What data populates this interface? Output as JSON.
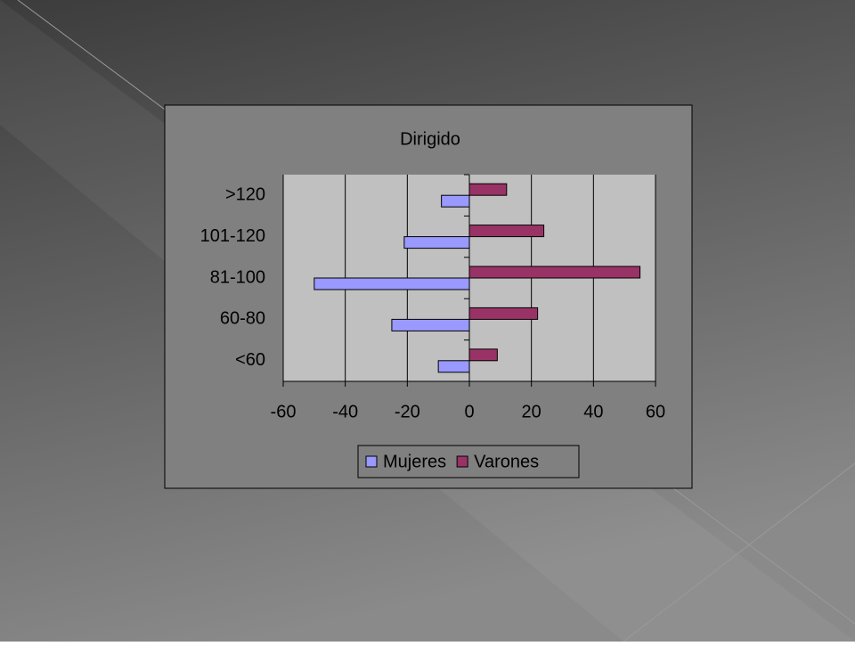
{
  "chart_data": {
    "type": "hbar",
    "title": "Dirigido",
    "categories": [
      ">120",
      "101-120",
      "81-100",
      "60-80",
      "<60"
    ],
    "series": [
      {
        "name": "Mujeres",
        "color": "#9999ff",
        "values": [
          -9,
          -21,
          -50,
          -25,
          -10
        ]
      },
      {
        "name": "Varones",
        "color": "#993366",
        "values": [
          12,
          24,
          55,
          22,
          9
        ]
      }
    ],
    "xlim": [
      -60,
      60
    ],
    "xticks": [
      -60,
      -40,
      -20,
      0,
      20,
      40,
      60
    ],
    "grid": true,
    "legend": "bottom"
  }
}
